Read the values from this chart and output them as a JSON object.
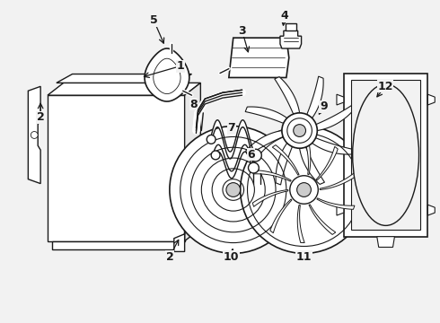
{
  "bg_color": "#f2f2f2",
  "line_color": "#1a1a1a",
  "figsize": [
    4.9,
    3.6
  ],
  "dpi": 100,
  "label_fontsize": 9
}
